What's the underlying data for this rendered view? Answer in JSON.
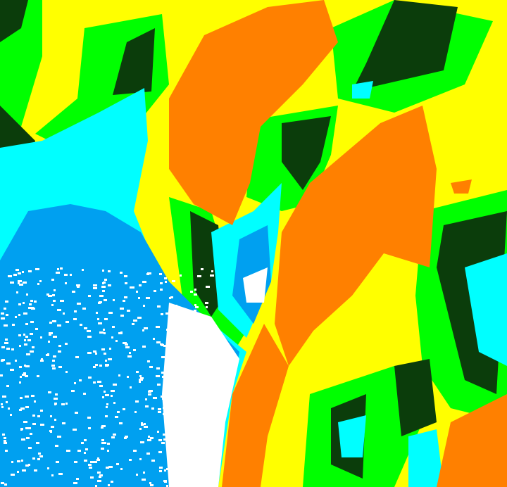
{
  "map": {
    "type": "classified raster",
    "colors": {
      "yellow": "#ffff00",
      "orange": "#ff8000",
      "green": "#00ff00",
      "dark_green": "#0b3d0b",
      "cyan": "#00ffff",
      "blue": "#00a0f0",
      "white": "#ffffff"
    }
  }
}
